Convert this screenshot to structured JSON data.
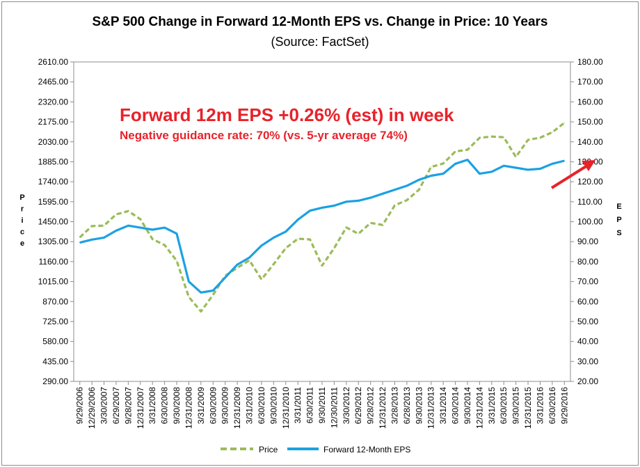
{
  "chart_data": {
    "type": "line",
    "title": "S&P 500 Change in Forward 12-Month EPS vs. Change in Price: 10 Years",
    "subtitle": "(Source: FactSet)",
    "ylabel_left": "Price",
    "ylabel_right": "EPS",
    "ylim_left": [
      290,
      2610
    ],
    "yticks_left": [
      "2610.00",
      "2465.00",
      "2320.00",
      "2175.00",
      "2030.00",
      "1885.00",
      "1740.00",
      "1595.00",
      "1450.00",
      "1305.00",
      "1160.00",
      "1015.00",
      "870.00",
      "725.00",
      "580.00",
      "435.00",
      "290.00"
    ],
    "ylim_right": [
      20,
      180
    ],
    "yticks_right": [
      "180.00",
      "170.00",
      "160.00",
      "150.00",
      "140.00",
      "130.00",
      "120.00",
      "110.00",
      "100.00",
      "90.00",
      "80.00",
      "70.00",
      "60.00",
      "50.00",
      "40.00",
      "30.00",
      "20.00"
    ],
    "x": [
      "9/29/2006",
      "12/29/2006",
      "3/30/2007",
      "6/29/2007",
      "9/28/2007",
      "12/31/2007",
      "3/31/2008",
      "6/30/2008",
      "9/30/2008",
      "12/31/2008",
      "3/31/2009",
      "6/30/2009",
      "9/30/2009",
      "12/31/2009",
      "3/31/2010",
      "6/30/2010",
      "9/30/2010",
      "12/31/2010",
      "3/31/2011",
      "6/30/2011",
      "9/30/2011",
      "12/30/2011",
      "3/30/2012",
      "6/29/2012",
      "9/28/2012",
      "12/31/2012",
      "3/28/2013",
      "6/28/2013",
      "9/30/2013",
      "12/31/2013",
      "3/31/2014",
      "6/30/2014",
      "9/30/2014",
      "12/31/2014",
      "3/31/2015",
      "6/30/2015",
      "9/30/2015",
      "12/31/2015",
      "3/31/2016",
      "6/30/2016",
      "9/29/2016"
    ],
    "series": [
      {
        "name": "Price",
        "color": "#9bbb59",
        "dash": true,
        "axis": "left",
        "values": [
          1336,
          1418,
          1421,
          1503,
          1527,
          1468,
          1323,
          1280,
          1166,
          903,
          798,
          919,
          1057,
          1115,
          1169,
          1031,
          1141,
          1258,
          1326,
          1321,
          1131,
          1258,
          1408,
          1362,
          1441,
          1426,
          1569,
          1606,
          1682,
          1848,
          1872,
          1960,
          1972,
          2059,
          2068,
          2063,
          1920,
          2044,
          2060,
          2099,
          2168
        ]
      },
      {
        "name": "Forward 12-Month EPS",
        "color": "#1ba1e2",
        "dash": false,
        "axis": "right",
        "values": [
          89.5,
          91.0,
          92.0,
          95.5,
          98.0,
          97.0,
          96.0,
          97.0,
          94.0,
          70.0,
          64.5,
          65.5,
          72.0,
          78.5,
          82.0,
          88.0,
          92.0,
          95.0,
          101.0,
          105.5,
          107.0,
          108.0,
          110.0,
          110.5,
          112.0,
          114.0,
          116.0,
          118.0,
          121.0,
          123.0,
          124.0,
          129.0,
          131.0,
          124.0,
          125.0,
          128.0,
          127.0,
          126.0,
          126.5,
          129.0,
          130.5
        ]
      }
    ],
    "legend": [
      "Price",
      "Forward 12-Month EPS"
    ],
    "legend_position": "bottom",
    "grid": false,
    "annotations": [
      {
        "text": "Forward 12m EPS +0.26% (est) in week",
        "color": "#e8222a"
      },
      {
        "text": "Negative guidance rate: 70% (vs. 5-yr average 74%)",
        "color": "#e8222a"
      }
    ],
    "arrow_color": "#e8222a"
  }
}
